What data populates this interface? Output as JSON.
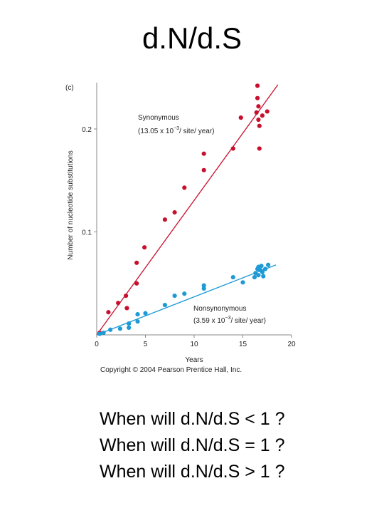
{
  "slide": {
    "title": "d.N/d.S",
    "questions": [
      "When will d.N/d.S < 1 ?",
      "When will d.N/d.S = 1 ?",
      "When will d.N/d.S > 1 ?"
    ]
  },
  "figure": {
    "panel_label": "(c)",
    "copyright": "Copyright © 2004 Pearson Prentice Hall, Inc."
  },
  "chart_data": {
    "type": "scatter",
    "xlabel": "Years",
    "ylabel": "Number of nucleotide substitutions",
    "xlim": [
      0,
      20
    ],
    "ylim": [
      0,
      0.245
    ],
    "xticks": [
      0,
      5,
      10,
      15,
      20
    ],
    "yticks": [
      0.1,
      0.2
    ],
    "ytick_labels": [
      "0.1",
      "0.2"
    ],
    "grid": false,
    "series": [
      {
        "name": "Synonymous",
        "rate_prefix": "(13.05 x 10",
        "rate_exp": "−3",
        "rate_suffix": "/ site/ year)",
        "color": "#c8102e",
        "fit_line": [
          [
            0,
            0
          ],
          [
            18.6,
            0.243
          ]
        ],
        "points": [
          [
            0.3,
            0.002
          ],
          [
            1.2,
            0.022
          ],
          [
            2.2,
            0.031
          ],
          [
            3.0,
            0.038
          ],
          [
            3.1,
            0.026
          ],
          [
            4.1,
            0.05
          ],
          [
            4.1,
            0.07
          ],
          [
            4.9,
            0.085
          ],
          [
            7.0,
            0.112
          ],
          [
            8.0,
            0.119
          ],
          [
            9.0,
            0.143
          ],
          [
            11.0,
            0.16
          ],
          [
            11.0,
            0.176
          ],
          [
            14.0,
            0.181
          ],
          [
            14.8,
            0.211
          ],
          [
            16.5,
            0.242
          ],
          [
            16.5,
            0.23
          ],
          [
            16.6,
            0.222
          ],
          [
            16.4,
            0.216
          ],
          [
            16.6,
            0.209
          ],
          [
            16.7,
            0.203
          ],
          [
            17.0,
            0.213
          ],
          [
            17.5,
            0.217
          ],
          [
            16.7,
            0.181
          ]
        ]
      },
      {
        "name": "Nonsynonymous",
        "rate_prefix": "(3.59 x 10",
        "rate_exp": "−3",
        "rate_suffix": "/ site/ year)",
        "color": "#1e9ad6",
        "fit_line": [
          [
            0,
            0
          ],
          [
            18.4,
            0.068
          ]
        ],
        "points": [
          [
            0.3,
            0.001
          ],
          [
            0.7,
            0.002
          ],
          [
            1.4,
            0.005
          ],
          [
            2.4,
            0.006
          ],
          [
            3.3,
            0.007
          ],
          [
            3.3,
            0.011
          ],
          [
            4.2,
            0.013
          ],
          [
            4.2,
            0.02
          ],
          [
            5.0,
            0.021
          ],
          [
            7.0,
            0.029
          ],
          [
            8.0,
            0.038
          ],
          [
            9.0,
            0.04
          ],
          [
            11.0,
            0.045
          ],
          [
            11.0,
            0.048
          ],
          [
            14.0,
            0.056
          ],
          [
            15.0,
            0.051
          ],
          [
            16.2,
            0.056
          ],
          [
            16.3,
            0.06
          ],
          [
            16.5,
            0.064
          ],
          [
            16.6,
            0.058
          ],
          [
            16.8,
            0.063
          ],
          [
            17.0,
            0.061
          ],
          [
            17.1,
            0.057
          ],
          [
            17.3,
            0.064
          ],
          [
            17.6,
            0.068
          ],
          [
            16.6,
            0.066
          ],
          [
            16.9,
            0.067
          ]
        ]
      }
    ]
  }
}
